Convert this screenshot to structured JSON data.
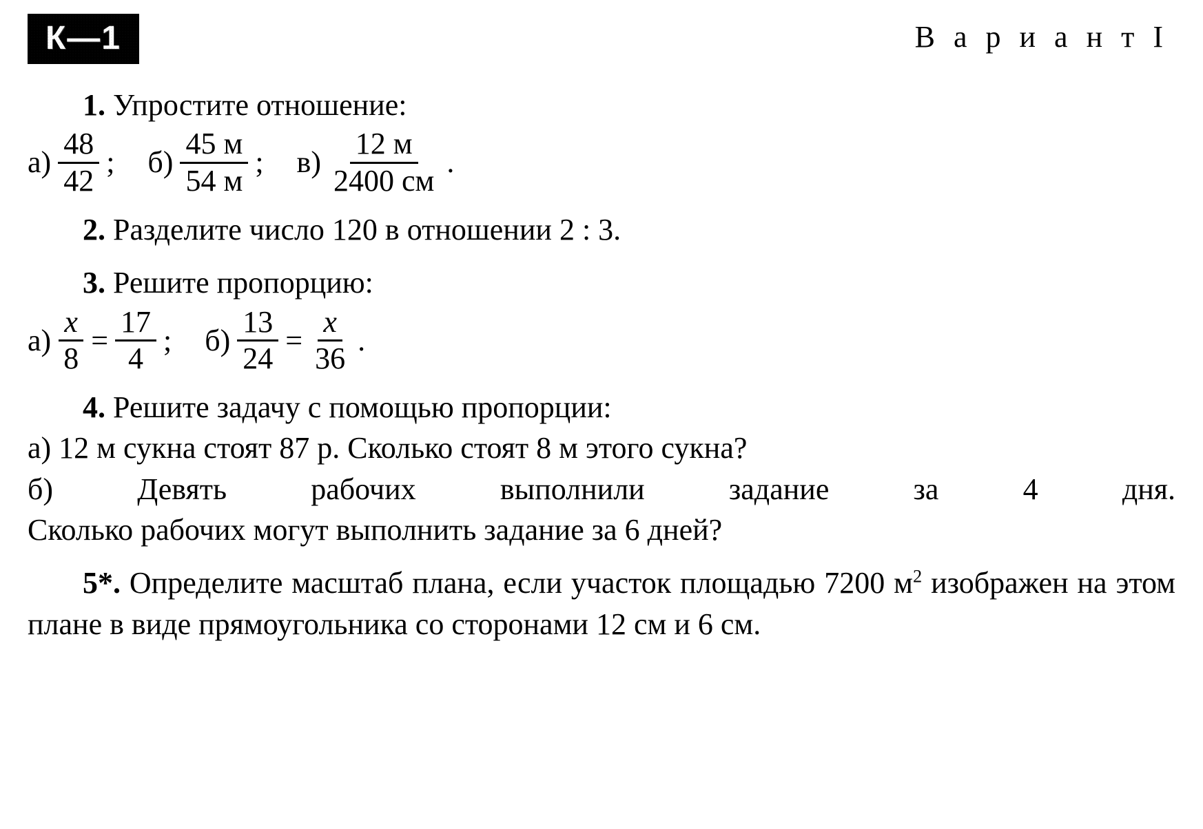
{
  "colors": {
    "text": "#000000",
    "background": "#ffffff",
    "badge_bg": "#000000",
    "badge_fg": "#ffffff"
  },
  "typography": {
    "body_family": "Times New Roman",
    "body_size_pt": 32,
    "badge_family": "Arial",
    "badge_size_pt": 36,
    "letter_spacing_variant": 8
  },
  "header": {
    "badge": "К—1",
    "variant": "В а р и а н т I"
  },
  "task1": {
    "num": "1.",
    "title": " Упростите отношение:",
    "a_label": "а)",
    "a_num": "48",
    "a_den": "42",
    "a_tail": ";",
    "b_label": "б)",
    "b_num": "45 м",
    "b_den": "54 м",
    "b_tail": ";",
    "c_label": "в)",
    "c_num": "12 м",
    "c_den": "2400 см",
    "c_tail": "."
  },
  "task2": {
    "num": "2.",
    "text": " Разделите число 120 в отношении 2 : 3."
  },
  "task3": {
    "num": "3.",
    "title": " Решите пропорцию:",
    "a_label": "а)",
    "a_l_num": "x",
    "a_l_den": "8",
    "a_eq": "=",
    "a_r_num": "17",
    "a_r_den": "4",
    "a_tail": ";",
    "b_label": "б)",
    "b_l_num": "13",
    "b_l_den": "24",
    "b_eq": "=",
    "b_r_num": "x",
    "b_r_den": "36",
    "b_tail": "."
  },
  "task4": {
    "num": "4.",
    "title": " Решите задачу с помощью пропорции:",
    "a": "а) 12 м сукна стоят 87 р. Сколько стоят 8 м этого сукна?",
    "b_line1": "б) Девять рабочих выполнили задание за 4 дня.",
    "b_line2": "Сколько рабочих могут выполнить задание за 6 дней?"
  },
  "task5": {
    "num": "5*.",
    "pre": " Определите масштаб плана, если участок пло­щадью 7200 м",
    "sup": "2",
    "post": " изображен на этом плане в виде пря­моугольника со сторонами 12 см и 6 см."
  }
}
